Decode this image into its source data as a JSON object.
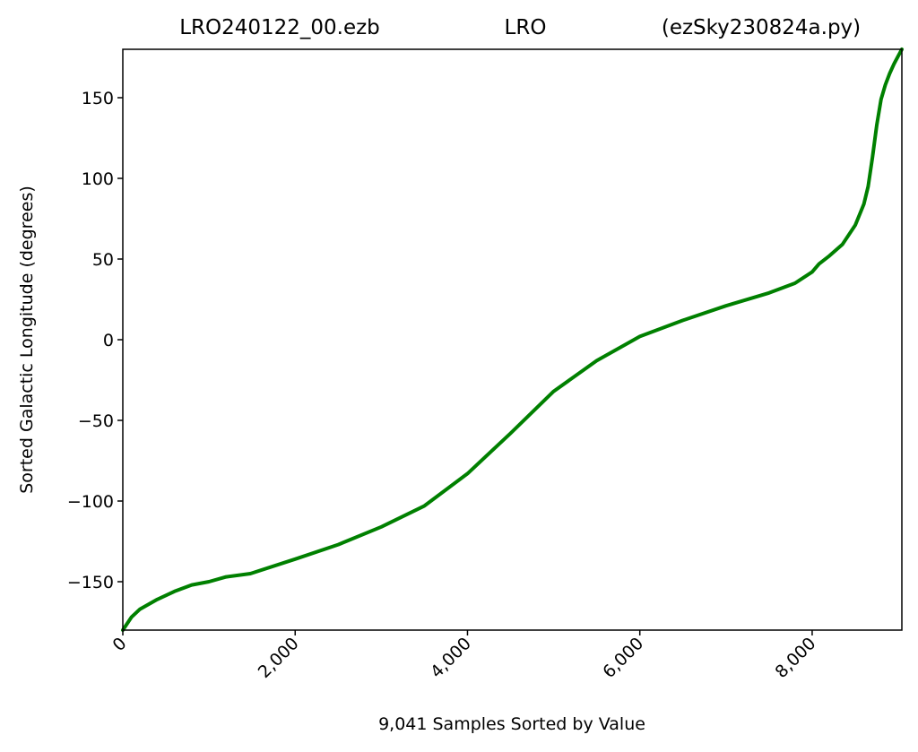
{
  "chart_data": {
    "type": "line",
    "title_parts": [
      "LRO240122_00.ezb",
      "LRO",
      "(ezSky230824a.py)"
    ],
    "xlabel": "9,041 Samples Sorted by Value",
    "ylabel": "Sorted Galactic Longitude (degrees)",
    "xlim": [
      0,
      9041
    ],
    "ylim": [
      -180,
      180
    ],
    "x_ticks": [
      0,
      2000,
      4000,
      6000,
      8000
    ],
    "x_tick_labels": [
      "0",
      "2,000",
      "4,000",
      "6,000",
      "8,000"
    ],
    "y_ticks": [
      150,
      100,
      50,
      0,
      -50,
      -100,
      -150
    ],
    "y_tick_labels": [
      "150",
      "100",
      "50",
      "0",
      "−50",
      "−100",
      "−150"
    ],
    "grid": false,
    "line_color": "#008000",
    "series": [
      {
        "x": [
          0,
          100,
          200,
          400,
          600,
          800,
          1000,
          1200,
          1480,
          2000,
          2500,
          3000,
          3500,
          4000,
          4500,
          5000,
          5500,
          6000,
          6500,
          7000,
          7500,
          7800,
          8000,
          8080,
          8200,
          8350,
          8500,
          8600,
          8650,
          8700,
          8750,
          8800,
          8850,
          8900,
          8950,
          9000,
          9041
        ],
        "y": [
          -180,
          -172,
          -167,
          -161,
          -156,
          -152,
          -150,
          -147,
          -145,
          -136,
          -127,
          -116,
          -103,
          -83,
          -58,
          -32,
          -13,
          2,
          12,
          21,
          29,
          35,
          42,
          47,
          52,
          59,
          71,
          84,
          95,
          113,
          133,
          149,
          158,
          165,
          171,
          176,
          180
        ]
      }
    ]
  }
}
